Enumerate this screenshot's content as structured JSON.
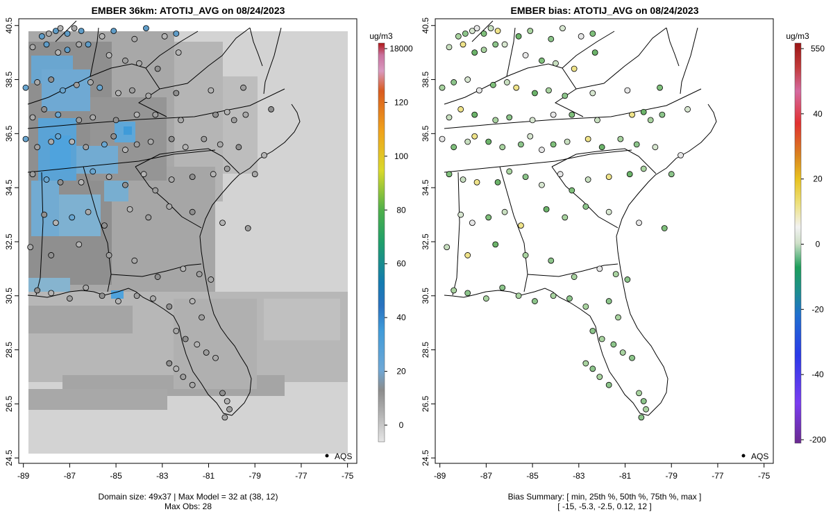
{
  "chart_data": [
    {
      "type": "map",
      "title": "EMBER 36km: ATOTIJ_AVG on 08/24/2023",
      "xlim": [
        -89.2,
        -74.6
      ],
      "ylim": [
        24.3,
        40.75
      ],
      "x_ticks": [
        "-89",
        "-87",
        "-85",
        "-83",
        "-81",
        "-79",
        "-77",
        "-75"
      ],
      "y_ticks": [
        "24.5",
        "26.5",
        "28.5",
        "30.5",
        "32.5",
        "34.5",
        "36.5",
        "38.5",
        "40.5"
      ],
      "colorbar_units": "ug/m3",
      "colorbar_labels": [
        "18000",
        "120",
        "100",
        "80",
        "60",
        "40",
        "20",
        "0"
      ],
      "legend_label": "AQS",
      "caption_line1": "Domain size: 49x37 | Max Model = 32 at (38, 12)",
      "caption_line2": "Max Obs: 28"
    },
    {
      "type": "map",
      "title": "EMBER bias: ATOTIJ_AVG on 08/24/2023",
      "xlim": [
        -89.2,
        -74.6
      ],
      "ylim": [
        24.3,
        40.75
      ],
      "x_ticks": [
        "-89",
        "-87",
        "-85",
        "-83",
        "-81",
        "-79",
        "-77",
        "-75"
      ],
      "y_ticks": [
        "24.5",
        "26.5",
        "28.5",
        "30.5",
        "32.5",
        "34.5",
        "36.5",
        "38.5",
        "40.5"
      ],
      "colorbar_units": "ug/m3",
      "colorbar_labels": [
        "550",
        "40",
        "20",
        "0",
        "-20",
        "-40",
        "-200"
      ],
      "legend_label": "AQS",
      "caption_line1": "Bias Summary: [ min, 25th %, 50th %, 75th %, max ]",
      "caption_line2": "[ -15,   -5.3,   -2.5,   0.12,   12 ]",
      "bias_summary": {
        "min": -15,
        "p25": -5.3,
        "median": -2.5,
        "p75": 0.12,
        "max": 12
      }
    }
  ],
  "stations": [
    [
      -88.2,
      40.1
    ],
    [
      -87.9,
      40.2
    ],
    [
      -87.6,
      40.3
    ],
    [
      -87.4,
      40.4
    ],
    [
      -87.1,
      40.2
    ],
    [
      -86.8,
      40.4
    ],
    [
      -86.5,
      40.3
    ],
    [
      -85.6,
      40.1
    ],
    [
      -85.1,
      40.3
    ],
    [
      -84.2,
      40.0
    ],
    [
      -83.7,
      40.4
    ],
    [
      -82.9,
      40.1
    ],
    [
      -82.4,
      40.2
    ],
    [
      -88.6,
      39.7
    ],
    [
      -88.0,
      39.8
    ],
    [
      -87.5,
      39.5
    ],
    [
      -87.1,
      39.6
    ],
    [
      -86.6,
      39.8
    ],
    [
      -86.2,
      39.8
    ],
    [
      -85.3,
      39.4
    ],
    [
      -84.6,
      39.2
    ],
    [
      -84.0,
      39.1
    ],
    [
      -83.2,
      38.9
    ],
    [
      -82.3,
      39.5
    ],
    [
      -88.9,
      38.2
    ],
    [
      -88.4,
      38.4
    ],
    [
      -87.8,
      38.5
    ],
    [
      -87.3,
      38.1
    ],
    [
      -86.7,
      38.3
    ],
    [
      -86.1,
      38.4
    ],
    [
      -85.7,
      38.2
    ],
    [
      -84.9,
      38.0
    ],
    [
      -84.3,
      38.1
    ],
    [
      -83.6,
      37.9
    ],
    [
      -82.4,
      38.0
    ],
    [
      -80.9,
      38.1
    ],
    [
      -79.5,
      38.2
    ],
    [
      -88.6,
      37.1
    ],
    [
      -88.1,
      37.4
    ],
    [
      -87.5,
      37.2
    ],
    [
      -86.6,
      37.0
    ],
    [
      -86.0,
      37.1
    ],
    [
      -85.0,
      37.0
    ],
    [
      -84.1,
      37.2
    ],
    [
      -83.3,
      37.2
    ],
    [
      -82.2,
      37.0
    ],
    [
      -80.7,
      37.2
    ],
    [
      -80.2,
      37.3
    ],
    [
      -79.9,
      37.0
    ],
    [
      -79.4,
      37.2
    ],
    [
      -78.3,
      37.4
    ],
    [
      -88.9,
      36.3
    ],
    [
      -88.4,
      36.0
    ],
    [
      -87.8,
      36.2
    ],
    [
      -87.5,
      36.4
    ],
    [
      -86.9,
      36.2
    ],
    [
      -86.3,
      36.0
    ],
    [
      -85.5,
      36.1
    ],
    [
      -85.1,
      36.4
    ],
    [
      -84.6,
      35.9
    ],
    [
      -84.1,
      36.1
    ],
    [
      -83.5,
      36.2
    ],
    [
      -82.6,
      36.3
    ],
    [
      -82.0,
      36.0
    ],
    [
      -81.2,
      36.3
    ],
    [
      -80.5,
      36.1
    ],
    [
      -79.7,
      36.0
    ],
    [
      -78.6,
      35.7
    ],
    [
      -88.6,
      35.0
    ],
    [
      -88.0,
      34.8
    ],
    [
      -87.4,
      34.7
    ],
    [
      -86.5,
      34.7
    ],
    [
      -86.0,
      35.1
    ],
    [
      -85.3,
      34.9
    ],
    [
      -84.6,
      34.6
    ],
    [
      -83.8,
      35.0
    ],
    [
      -83.3,
      34.4
    ],
    [
      -82.6,
      34.8
    ],
    [
      -81.7,
      34.9
    ],
    [
      -80.8,
      35.0
    ],
    [
      -80.2,
      35.2
    ],
    [
      -79.0,
      35.0
    ],
    [
      -88.1,
      33.5
    ],
    [
      -87.6,
      33.2
    ],
    [
      -86.9,
      33.4
    ],
    [
      -86.2,
      33.6
    ],
    [
      -85.5,
      33.1
    ],
    [
      -84.4,
      33.7
    ],
    [
      -83.6,
      33.4
    ],
    [
      -82.7,
      33.8
    ],
    [
      -81.7,
      33.6
    ],
    [
      -80.4,
      33.2
    ],
    [
      -79.3,
      33.0
    ],
    [
      -88.7,
      32.3
    ],
    [
      -87.8,
      32.0
    ],
    [
      -86.6,
      32.4
    ],
    [
      -85.3,
      32.0
    ],
    [
      -84.2,
      31.8
    ],
    [
      -83.2,
      31.2
    ],
    [
      -82.1,
      31.5
    ],
    [
      -81.4,
      31.3
    ],
    [
      -80.9,
      31.1
    ],
    [
      -88.4,
      30.7
    ],
    [
      -87.8,
      30.6
    ],
    [
      -87.0,
      30.4
    ],
    [
      -86.3,
      30.8
    ],
    [
      -85.6,
      30.5
    ],
    [
      -84.9,
      30.3
    ],
    [
      -84.1,
      30.5
    ],
    [
      -83.4,
      30.4
    ],
    [
      -82.7,
      30.1
    ],
    [
      -81.7,
      30.3
    ],
    [
      -81.3,
      29.7
    ],
    [
      -82.4,
      29.2
    ],
    [
      -82.0,
      28.9
    ],
    [
      -81.5,
      28.7
    ],
    [
      -81.1,
      28.4
    ],
    [
      -80.7,
      28.2
    ],
    [
      -82.7,
      28.0
    ],
    [
      -82.4,
      27.8
    ],
    [
      -82.1,
      27.5
    ],
    [
      -81.7,
      27.2
    ],
    [
      -80.4,
      26.9
    ],
    [
      -80.2,
      26.6
    ],
    [
      -80.1,
      26.3
    ],
    [
      -80.3,
      26.0
    ]
  ],
  "legend_marker": "station-dot"
}
